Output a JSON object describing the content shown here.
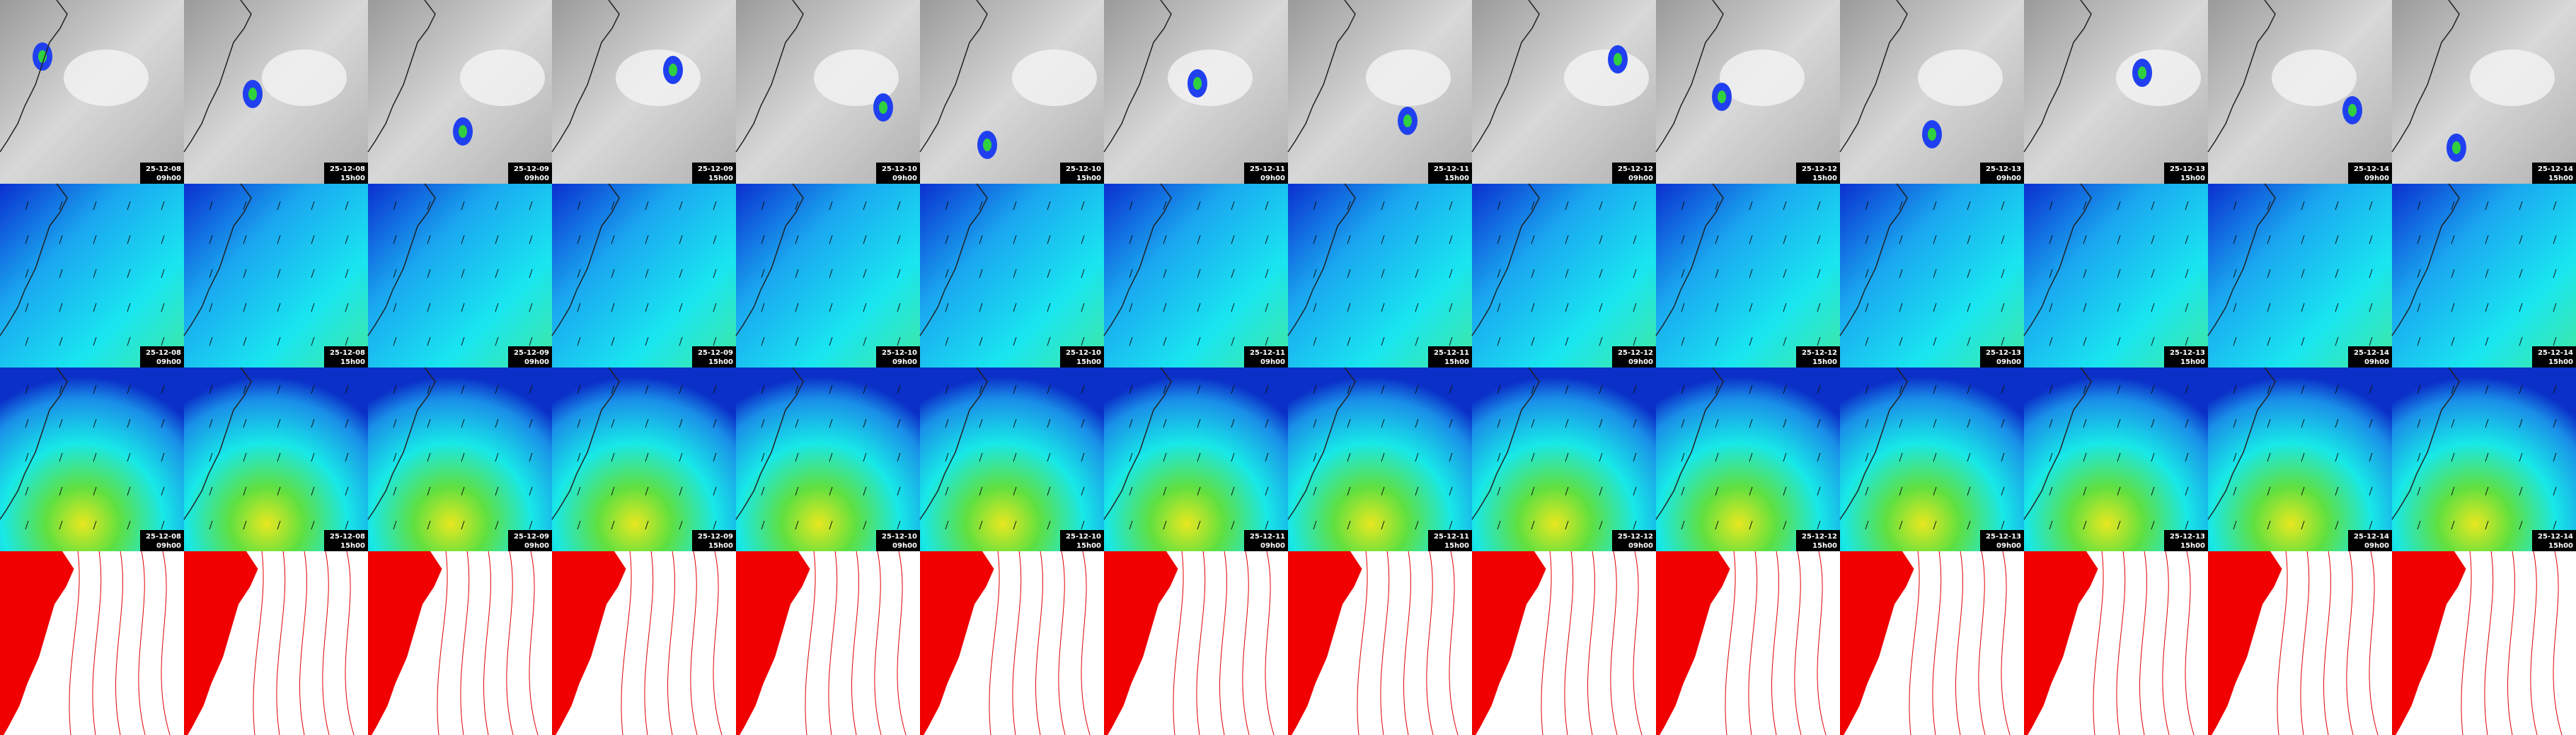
{
  "columns": [
    {
      "date": "25-12-08",
      "time": "09h00"
    },
    {
      "date": "25-12-08",
      "time": "15h00"
    },
    {
      "date": "25-12-09",
      "time": "09h00"
    },
    {
      "date": "25-12-09",
      "time": "15h00"
    },
    {
      "date": "25-12-10",
      "time": "09h00"
    },
    {
      "date": "25-12-10",
      "time": "15h00"
    },
    {
      "date": "25-12-11",
      "time": "09h00"
    },
    {
      "date": "25-12-11",
      "time": "15h00"
    },
    {
      "date": "25-12-12",
      "time": "09h00"
    },
    {
      "date": "25-12-12",
      "time": "15h00"
    },
    {
      "date": "25-12-13",
      "time": "09h00"
    },
    {
      "date": "25-12-13",
      "time": "15h00"
    },
    {
      "date": "25-12-14",
      "time": "09h00"
    },
    {
      "date": "25-12-14",
      "time": "15h00"
    }
  ]
}
